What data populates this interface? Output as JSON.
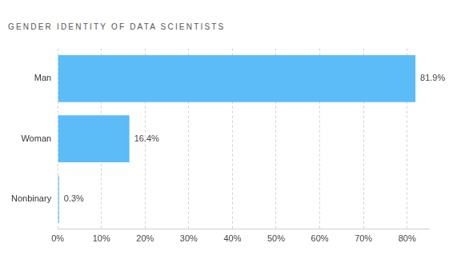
{
  "chart_data": {
    "type": "bar",
    "title": "GENDER IDENTITY OF DATA SCIENTISTS",
    "orientation": "horizontal",
    "categories": [
      "Man",
      "Woman",
      "Nonbinary"
    ],
    "values": [
      81.9,
      16.4,
      0.3
    ],
    "value_labels": [
      "81.9%",
      "16.4%",
      "0.3%"
    ],
    "data_labels": true,
    "color": "#5bbcf7",
    "xlim": [
      0,
      85
    ],
    "xticks": [
      {
        "value": 0,
        "label": "0%"
      },
      {
        "value": 10,
        "label": "10%"
      },
      {
        "value": 20,
        "label": "20%"
      },
      {
        "value": 30,
        "label": "30%"
      },
      {
        "value": 40,
        "label": "40%"
      },
      {
        "value": 50,
        "label": "50%"
      },
      {
        "value": 60,
        "label": "60%"
      },
      {
        "value": 70,
        "label": "70%"
      },
      {
        "value": 80,
        "label": "80%"
      }
    ],
    "grid": true
  }
}
